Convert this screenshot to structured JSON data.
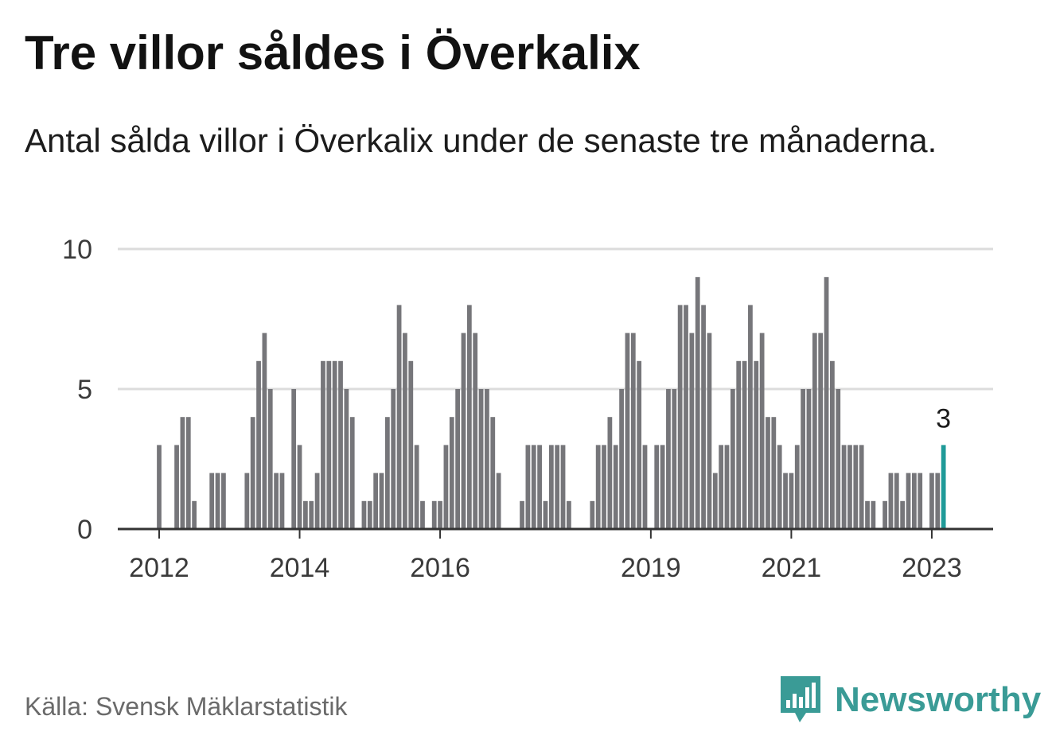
{
  "header": {
    "title": "Tre villor såldes i Överkalix",
    "subtitle": "Antal sålda villor i Överkalix under de senaste tre månaderna."
  },
  "footer": {
    "source": "Källa: Svensk Mäklarstatistik",
    "brand": "Newsworthy",
    "brand_icon": "bar-chart-speech-bubble-icon"
  },
  "colors": {
    "bar": "#76767a",
    "highlight": "#1f9a98",
    "brand": "#3a9b96",
    "grid": "#dcdcdc",
    "axis": "#333333"
  },
  "chart_data": {
    "type": "bar",
    "title": "",
    "xlabel": "",
    "ylabel": "",
    "ylim": [
      0,
      10
    ],
    "yticks": [
      0,
      5,
      10
    ],
    "grid": true,
    "x_ticks": [
      "2012",
      "2014",
      "2016",
      "2019",
      "2021",
      "2023"
    ],
    "x_start": "2012-01",
    "x_end": "2023-04",
    "series": [
      {
        "values": [
          3,
          0,
          0,
          3,
          4,
          4,
          1,
          0,
          0,
          2,
          2,
          2,
          0,
          0,
          0,
          2,
          4,
          6,
          7,
          5,
          2,
          2,
          0,
          5,
          3,
          1,
          1,
          2,
          6,
          6,
          6,
          6,
          5,
          4,
          0,
          1,
          1,
          2,
          2,
          4,
          5,
          8,
          7,
          6,
          3,
          1,
          0,
          1,
          1,
          3,
          4,
          5,
          7,
          8,
          7,
          5,
          5,
          4,
          2,
          0,
          0,
          0,
          1,
          3,
          3,
          3,
          1,
          3,
          3,
          3,
          1,
          0,
          0,
          0,
          1,
          3,
          3,
          4,
          3,
          5,
          7,
          7,
          6,
          3,
          0,
          3,
          3,
          5,
          5,
          8,
          8,
          7,
          9,
          8,
          7,
          2,
          3,
          3,
          5,
          6,
          6,
          8,
          6,
          7,
          4,
          4,
          3,
          2,
          2,
          3,
          5,
          5,
          7,
          7,
          9,
          6,
          5,
          3,
          3,
          3,
          3,
          1,
          1,
          0,
          1,
          2,
          2,
          1,
          2,
          2,
          2,
          0,
          2,
          2,
          3
        ]
      }
    ],
    "highlight": {
      "x": "2023-03",
      "value": 3,
      "label": "3"
    }
  }
}
